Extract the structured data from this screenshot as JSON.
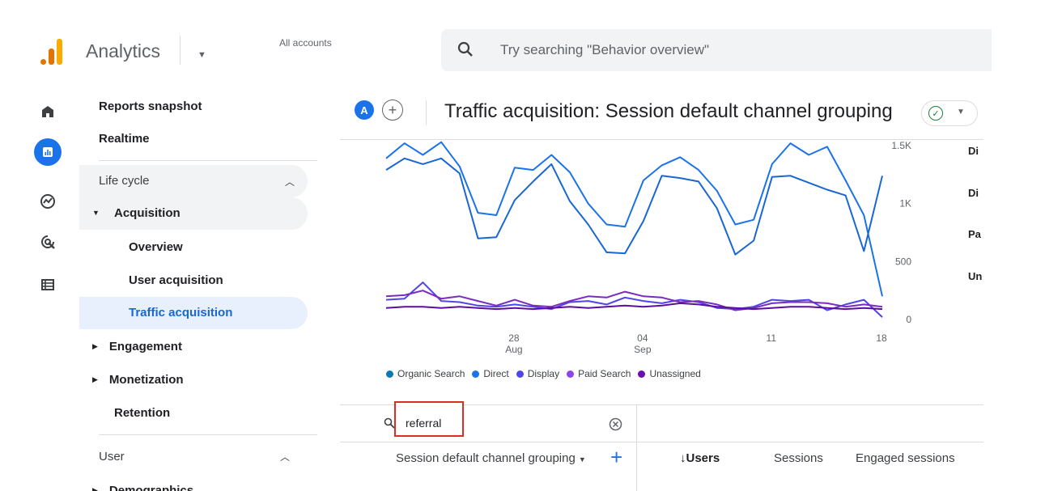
{
  "app": {
    "title": "Analytics",
    "account_label": "All accounts"
  },
  "search": {
    "placeholder": "Try searching \"Behavior overview\""
  },
  "rail": {
    "icons": [
      "home-icon",
      "reports-icon",
      "explore-icon",
      "advertising-icon",
      "configure-icon"
    ]
  },
  "sidebar": {
    "reports_snapshot": "Reports snapshot",
    "realtime": "Realtime",
    "life_cycle": "Life cycle",
    "acquisition": "Acquisition",
    "overview": "Overview",
    "user_acquisition": "User acquisition",
    "traffic_acquisition": "Traffic acquisition",
    "engagement": "Engagement",
    "monetization": "Monetization",
    "retention": "Retention",
    "user": "User",
    "demographics": "Demographics"
  },
  "header": {
    "comparison_chip": "A",
    "title": "Traffic acquisition: Session default channel grouping"
  },
  "chart_data": {
    "type": "line",
    "x_ticks": [
      {
        "label": "28",
        "sub": "Aug"
      },
      {
        "label": "04",
        "sub": "Sep"
      },
      {
        "label": "11",
        "sub": ""
      },
      {
        "label": "18",
        "sub": ""
      }
    ],
    "y_ticks": [
      "1.5K",
      "1K",
      "500",
      "0"
    ],
    "ylim": [
      0,
      1500
    ],
    "series": [
      {
        "name": "Organic Search",
        "color": "#1a73e8",
        "values": [
          1390,
          1520,
          1420,
          1530,
          1320,
          920,
          900,
          1310,
          1290,
          1420,
          1270,
          1000,
          820,
          800,
          1200,
          1330,
          1400,
          1290,
          1110,
          820,
          860,
          1340,
          1520,
          1420,
          1490,
          1200,
          900,
          200
        ]
      },
      {
        "name": "Direct",
        "color": "#1967d2",
        "values": [
          1290,
          1390,
          1340,
          1390,
          1260,
          700,
          710,
          1030,
          1190,
          1340,
          1020,
          820,
          580,
          570,
          850,
          1240,
          1220,
          1190,
          960,
          560,
          680,
          1230,
          1240,
          1180,
          1120,
          1070,
          590,
          1240
        ]
      },
      {
        "name": "Display",
        "color": "#4f46e5",
        "values": [
          170,
          180,
          320,
          160,
          150,
          120,
          110,
          130,
          110,
          90,
          150,
          160,
          130,
          190,
          160,
          140,
          170,
          150,
          100,
          90,
          110,
          170,
          160,
          170,
          80,
          130,
          170,
          20
        ]
      },
      {
        "name": "Paid Search",
        "color": "#7b2cbf",
        "values": [
          200,
          210,
          250,
          180,
          200,
          160,
          120,
          170,
          120,
          110,
          160,
          200,
          190,
          240,
          200,
          190,
          150,
          160,
          130,
          80,
          100,
          140,
          150,
          150,
          140,
          110,
          130,
          110
        ]
      },
      {
        "name": "Unassigned",
        "color": "#5b0f9e",
        "values": [
          100,
          110,
          110,
          100,
          110,
          100,
          90,
          100,
          90,
          100,
          110,
          100,
          110,
          120,
          110,
          120,
          140,
          130,
          110,
          100,
          90,
          100,
          110,
          110,
          100,
          90,
          100,
          90
        ]
      }
    ]
  },
  "legend": [
    {
      "name": "Organic Search",
      "color": "#0b79b4"
    },
    {
      "name": "Direct",
      "color": "#1a73e8"
    },
    {
      "name": "Display",
      "color": "#4f46e5"
    },
    {
      "name": "Paid Search",
      "color": "#8e44ec"
    },
    {
      "name": "Unassigned",
      "color": "#6a0dad"
    }
  ],
  "right_panel": [
    "Di",
    "Di",
    "Pa",
    "Un"
  ],
  "table": {
    "filter_value": "referral",
    "dimension_header": "Session default channel grouping",
    "col_users": "↓Users",
    "col_sessions": "Sessions",
    "col_engaged": "Engaged sessions"
  }
}
